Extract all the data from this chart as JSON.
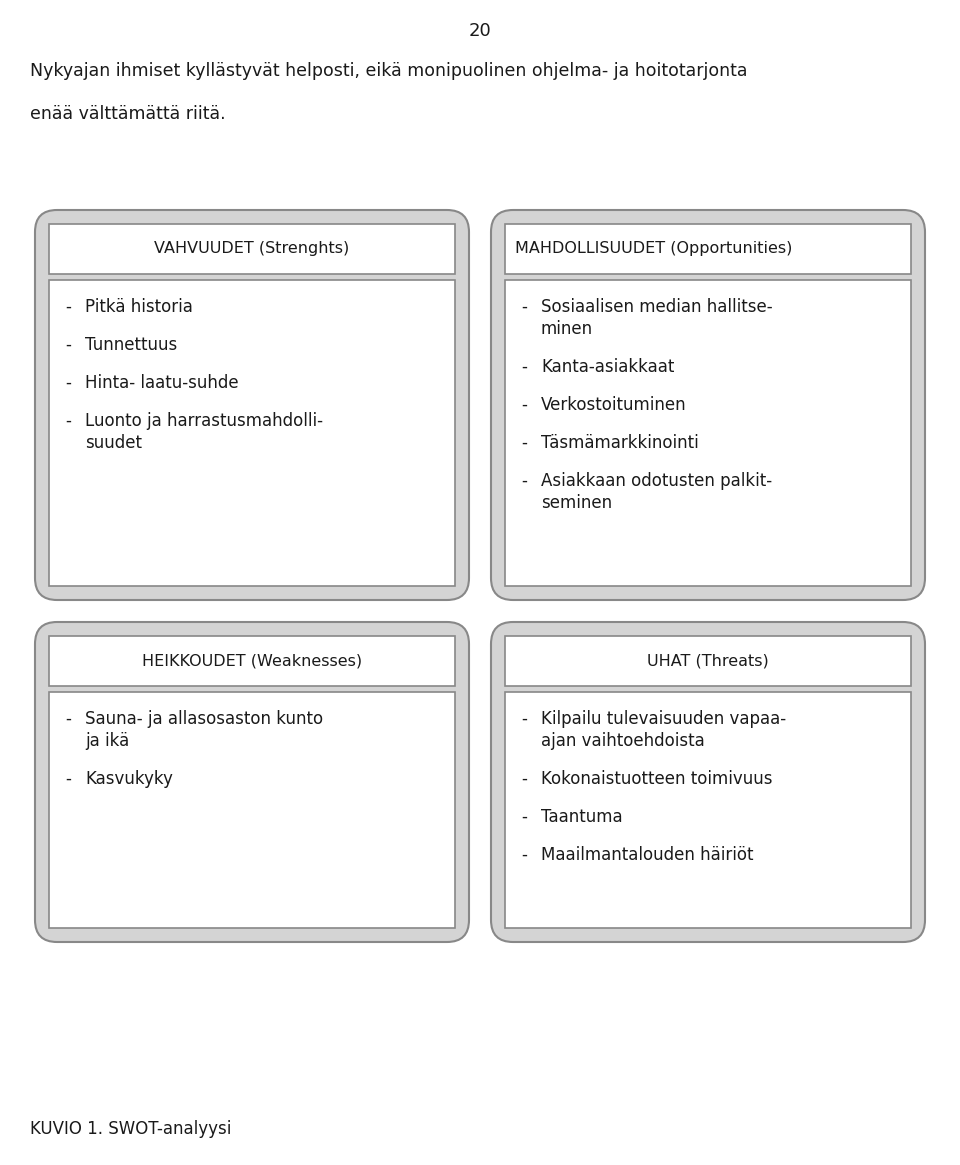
{
  "page_number": "20",
  "intro_text_line1": "Nykyajan ihmiset kyllästyvät helposti, eikä monipuolinen ohjelma- ja hoitotarjonta",
  "intro_text_line2": "enää välttämättä riitä.",
  "footer_text": "KUVIO 1. SWOT-analyysi",
  "box_bg": "#d4d4d4",
  "inner_bg": "#ffffff",
  "text_color": "#1a1a1a",
  "border_color": "#888888",
  "swot": {
    "strengths": {
      "title": "VAHVUUDET (Strenghts)",
      "items": [
        [
          "Pitkä historia"
        ],
        [
          "Tunnettuus"
        ],
        [
          "Hinta- laatu-suhde"
        ],
        [
          "Luonto ja harrastusmahdolli-",
          "suudet"
        ]
      ]
    },
    "opportunities": {
      "title": "MAHDOLLISUUDET (Opportunities)",
      "items": [
        [
          "Sosiaalisen median hallitse-",
          "minen"
        ],
        [
          "Kanta-asiakkaat"
        ],
        [
          "Verkostoituminen"
        ],
        [
          "Täsmämarkkinointi"
        ],
        [
          "Asiakkaan odotusten palkit-",
          "seminen"
        ]
      ]
    },
    "weaknesses": {
      "title": "HEIKKOUDET (Weaknesses)",
      "items": [
        [
          "Sauna- ja allasosaston kunto",
          "ja ikä"
        ],
        [
          "Kasvukyky"
        ]
      ]
    },
    "threats": {
      "title": "UHAT (Threats)",
      "items": [
        [
          "Kilpailu tulevaisuuden vapaa-",
          "ajan vaihtoehdoista"
        ],
        [
          "Kokonaistuotteen toimivuus"
        ],
        [
          "Taantuma"
        ],
        [
          "Maailmantalouden häiriöt"
        ]
      ]
    }
  }
}
